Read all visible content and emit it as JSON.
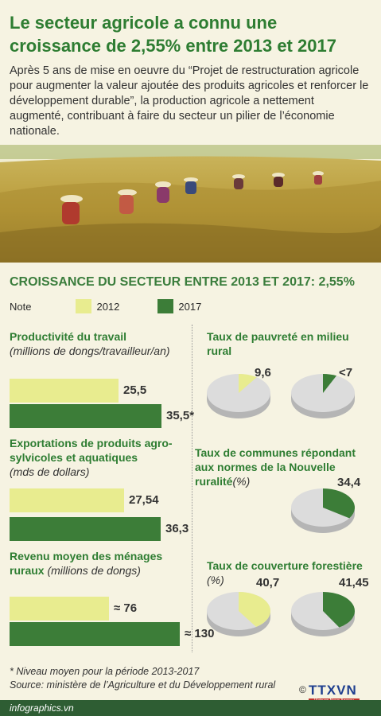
{
  "header": {
    "title": "Le secteur agricole a connu une croissance de 2,55% entre 2013 et 2017",
    "intro": "Après 5 ans de mise en oeuvre du “Projet de restructuration agricole pour augmenter la valeur ajoutée des produits agricoles et renforcer le développement durable”, la production agricole a nettement augmenté, contribuant à faire du secteur un pilier de l’économie nationale."
  },
  "subtitle": "CROISSANCE DU SECTEUR ENTRE 2013 ET 2017: 2,55%",
  "legend": {
    "label": "Note",
    "y2012": "2012",
    "y2017": "2017"
  },
  "colors": {
    "y2012": "#e8ec8f",
    "y2017": "#3c7d38",
    "title_green": "#2e7d32",
    "pie_base": "#dcdcdc",
    "bottombar": "#2e5d33"
  },
  "chart_data": [
    {
      "type": "bar",
      "title": "Productivité du travail",
      "unit": "(millions de dongs/travailleur/an)",
      "categories": [
        "2012",
        "2017"
      ],
      "values": [
        25.5,
        35.5
      ],
      "labels": [
        "25,5",
        "35,5*"
      ]
    },
    {
      "type": "bar",
      "title": "Exportations de produits agro-sylvicoles et aquatiques",
      "unit": "(mds de dollars)",
      "categories": [
        "2012",
        "2017"
      ],
      "values": [
        27.54,
        36.3
      ],
      "labels": [
        "27,54",
        "36,3"
      ]
    },
    {
      "type": "bar",
      "title": "Revenu moyen des ménages ruraux",
      "unit": "(millions de dongs)",
      "categories": [
        "2012",
        "2017"
      ],
      "values": [
        76,
        130
      ],
      "labels": [
        "≈ 76",
        "≈ 130"
      ]
    },
    {
      "type": "pie",
      "title": "Taux de pauvreté en milieu rural",
      "unit": "",
      "categories": [
        "2012",
        "2017"
      ],
      "values": [
        9.6,
        7
      ],
      "labels": [
        "9,6",
        "<7"
      ]
    },
    {
      "type": "pie",
      "title": "Taux de communes répondant aux normes de la Nouvelle ruralité",
      "unit": "(%)",
      "categories": [
        "2017"
      ],
      "values": [
        34.4
      ],
      "labels": [
        "34,4"
      ]
    },
    {
      "type": "pie",
      "title": "Taux de couverture forestière",
      "unit": "(%)",
      "categories": [
        "2012",
        "2017"
      ],
      "values": [
        40.7,
        41.45
      ],
      "labels": [
        "40,7",
        "41,45"
      ]
    }
  ],
  "footer": {
    "note": "* Niveau moyen pour la période 2013-2017",
    "source": "Source: ministère de l’Agriculture et du Développement rural"
  },
  "brand": {
    "site": "infographics.vn",
    "logo": "TTXVN",
    "logo_sub": "Vietnam News Agency",
    "copyright": "©"
  }
}
